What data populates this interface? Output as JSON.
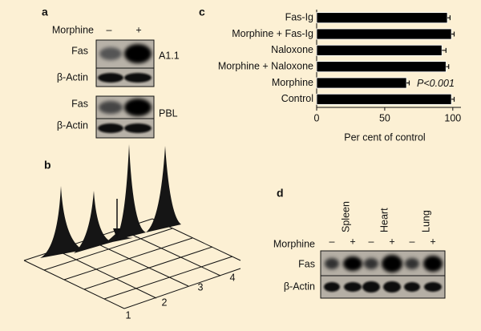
{
  "panel_a": {
    "label": "a",
    "treatment": "Morphine",
    "conditions": [
      "–",
      "+"
    ],
    "blots": [
      {
        "rows": [
          "Fas",
          "β-Actin"
        ],
        "cell": "A1.1"
      },
      {
        "rows": [
          "Fas",
          "β-Actin"
        ],
        "cell": "PBL"
      }
    ]
  },
  "panel_b": {
    "label": "b",
    "axis_labels": [
      "1",
      "2",
      "3",
      "4"
    ]
  },
  "chart_data": {
    "type": "bar",
    "orientation": "horizontal",
    "panel_label": "c",
    "categories": [
      "Fas-Ig",
      "Morphine + Fas-Ig",
      "Naloxone",
      "Morphine + Naloxone",
      "Morphine",
      "Control"
    ],
    "values": [
      96,
      99,
      92,
      95,
      66,
      99
    ],
    "errors": [
      2,
      2,
      3,
      2,
      2,
      2
    ],
    "color": "#000000",
    "xlim": [
      0,
      106
    ],
    "xticks": [
      0,
      50,
      100
    ],
    "xlabel": "Per cent of control",
    "annotation": "P<0.001"
  },
  "panel_d": {
    "label": "d",
    "tissues": [
      "Spleen",
      "Heart",
      "Lung"
    ],
    "treatment": "Morphine",
    "conditions": [
      "–",
      "+",
      "–",
      "+",
      "–",
      "+"
    ],
    "rows": [
      "Fas",
      "β-Actin"
    ]
  }
}
